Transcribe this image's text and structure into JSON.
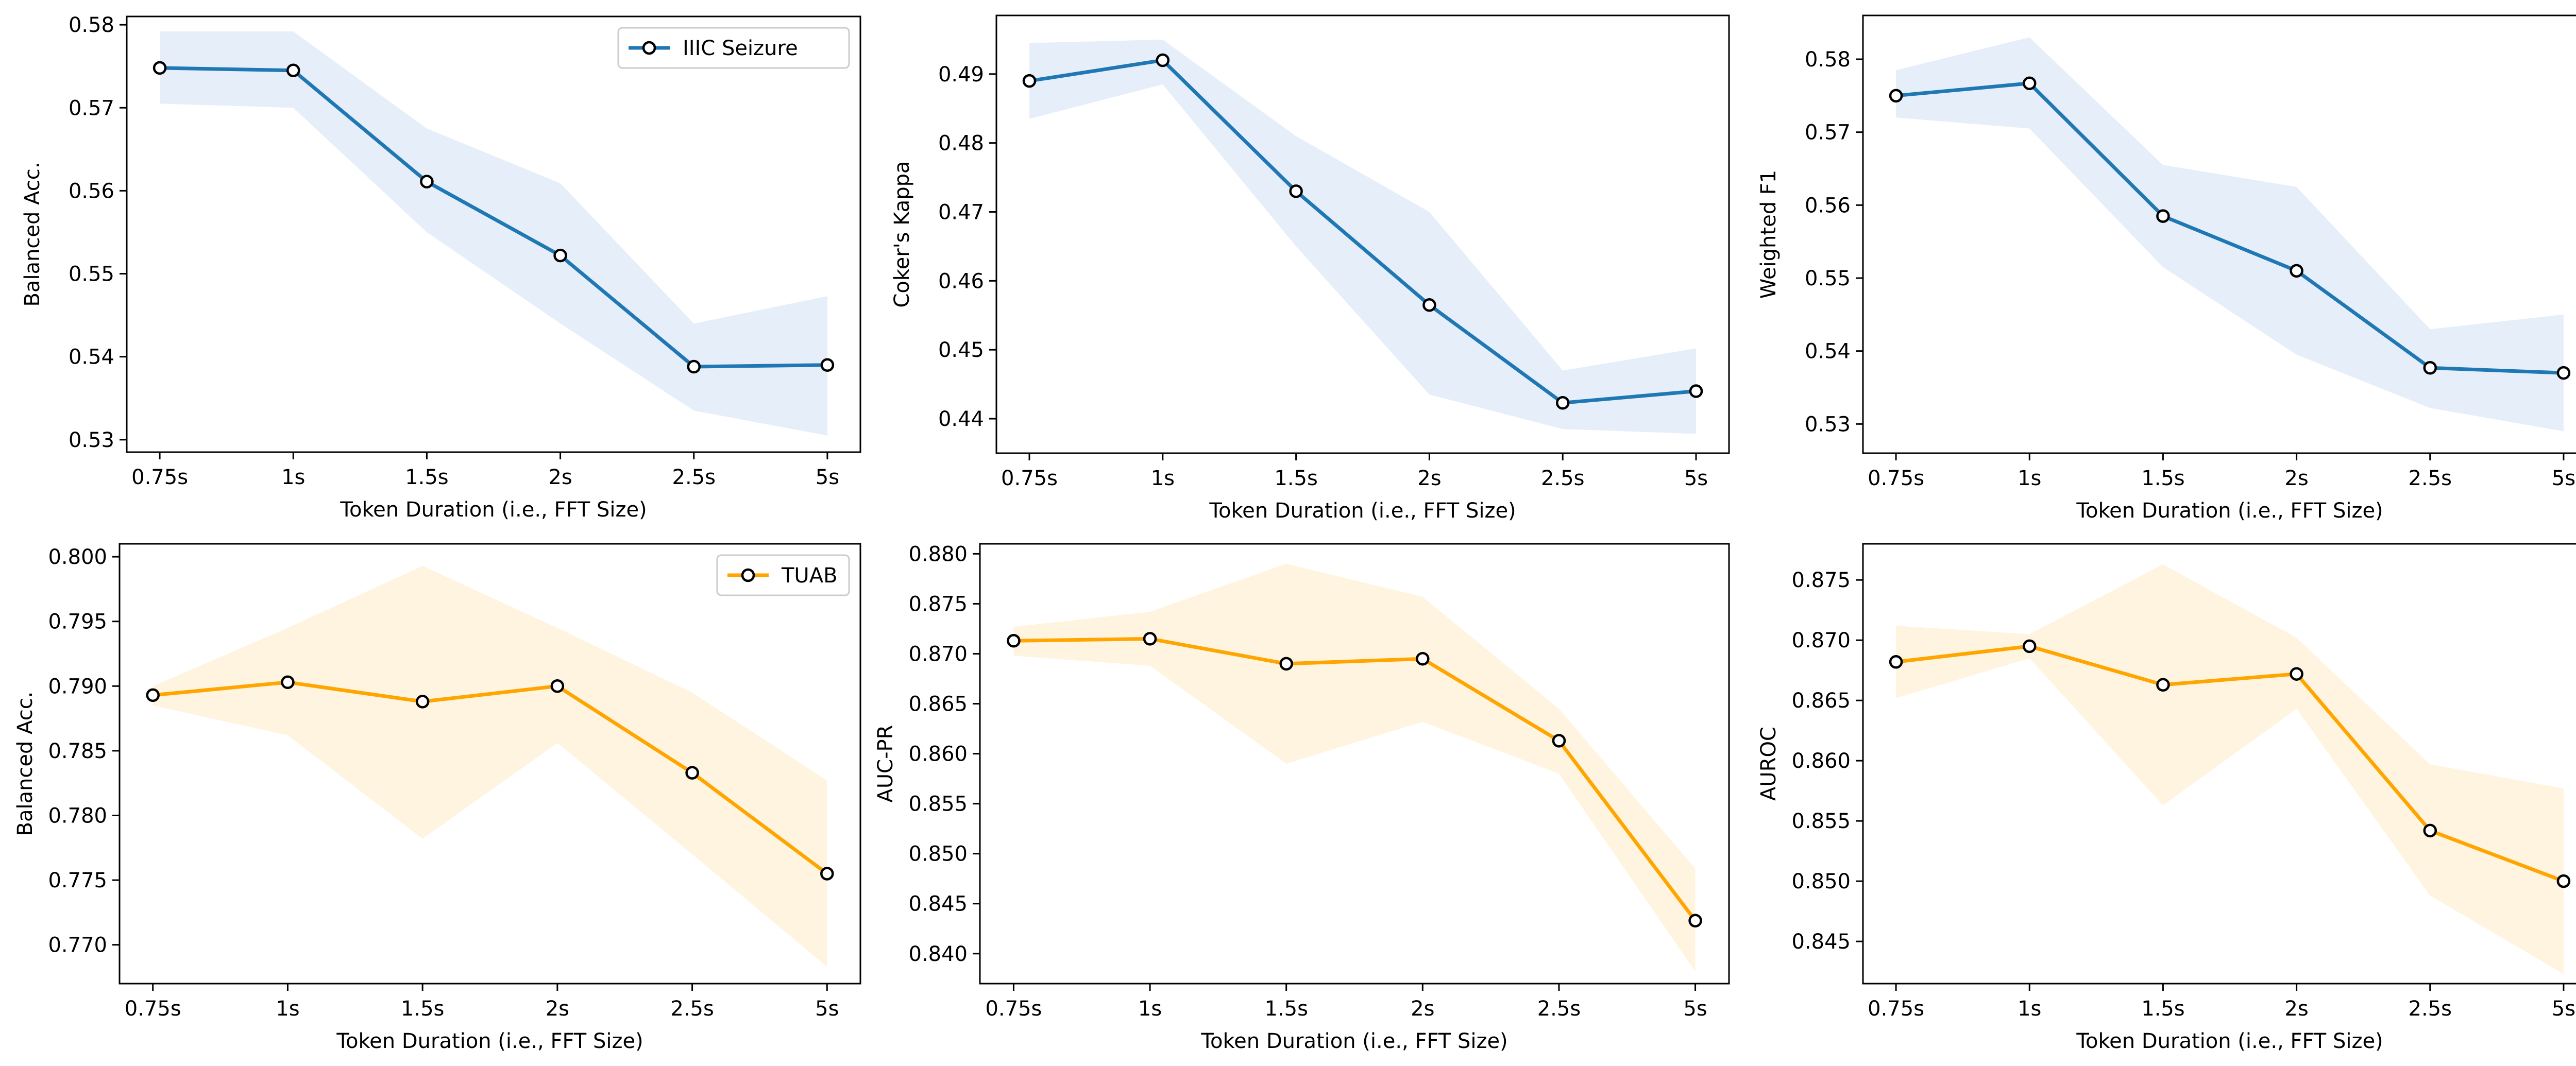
{
  "chart_data": [
    {
      "type": "line",
      "id": "iiic-bacc",
      "categories": [
        "0.75s",
        "1s",
        "1.5s",
        "2s",
        "2.5s",
        "5s"
      ],
      "xlabel": "Token Duration (i.e., FFT Size)",
      "ylabel": "Balanced Acc.",
      "ylim": [
        0.5285,
        0.581
      ],
      "yticks": [
        0.53,
        0.54,
        0.55,
        0.56,
        0.57,
        0.58
      ],
      "ytick_labels": [
        "0.53",
        "0.54",
        "0.55",
        "0.56",
        "0.57",
        "0.58"
      ],
      "series": [
        {
          "name": "IIIC Seizure",
          "values": [
            0.5748,
            0.5745,
            0.5611,
            0.5522,
            0.5388,
            0.539
          ],
          "band_upper": [
            0.5792,
            0.5792,
            0.5675,
            0.5609,
            0.544,
            0.5473
          ],
          "band_lower": [
            0.5705,
            0.57,
            0.555,
            0.544,
            0.5335,
            0.5305
          ]
        }
      ],
      "color": "#1f77b4",
      "band_color": "#e6eff9",
      "legend": {
        "label": "IIIC Seizure",
        "loc": "upper right"
      }
    },
    {
      "type": "line",
      "id": "iiic-kappa",
      "categories": [
        "0.75s",
        "1s",
        "1.5s",
        "2s",
        "2.5s",
        "5s"
      ],
      "xlabel": "Token Duration (i.e., FFT Size)",
      "ylabel": "Coker's Kappa",
      "ylim": [
        0.435,
        0.4985
      ],
      "yticks": [
        0.44,
        0.45,
        0.46,
        0.47,
        0.48,
        0.49
      ],
      "ytick_labels": [
        "0.44",
        "0.45",
        "0.46",
        "0.47",
        "0.48",
        "0.49"
      ],
      "series": [
        {
          "name": "IIIC Seizure",
          "values": [
            0.489,
            0.492,
            0.473,
            0.4565,
            0.4423,
            0.444
          ],
          "band_upper": [
            0.4945,
            0.495,
            0.481,
            0.47,
            0.447,
            0.4502
          ],
          "band_lower": [
            0.4835,
            0.4885,
            0.465,
            0.4435,
            0.4385,
            0.4378
          ]
        }
      ],
      "color": "#1f77b4",
      "band_color": "#e6eff9"
    },
    {
      "type": "line",
      "id": "iiic-f1",
      "categories": [
        "0.75s",
        "1s",
        "1.5s",
        "2s",
        "2.5s",
        "5s"
      ],
      "xlabel": "Token Duration (i.e., FFT Size)",
      "ylabel": "Weighted F1",
      "ylim": [
        0.526,
        0.586
      ],
      "yticks": [
        0.53,
        0.54,
        0.55,
        0.56,
        0.57,
        0.58
      ],
      "ytick_labels": [
        "0.53",
        "0.54",
        "0.55",
        "0.56",
        "0.57",
        "0.58"
      ],
      "series": [
        {
          "name": "IIIC Seizure",
          "values": [
            0.575,
            0.5767,
            0.5585,
            0.551,
            0.5377,
            0.537
          ],
          "band_upper": [
            0.5785,
            0.583,
            0.5655,
            0.5625,
            0.543,
            0.545
          ],
          "band_lower": [
            0.572,
            0.5705,
            0.5515,
            0.5395,
            0.5322,
            0.529
          ]
        }
      ],
      "color": "#1f77b4",
      "band_color": "#e6eff9"
    },
    {
      "type": "line",
      "id": "tuab-bacc",
      "categories": [
        "0.75s",
        "1s",
        "1.5s",
        "2s",
        "2.5s",
        "5s"
      ],
      "xlabel": "Token Duration (i.e., FFT Size)",
      "ylabel": "Balanced Acc.",
      "ylim": [
        0.767,
        0.801
      ],
      "yticks": [
        0.77,
        0.775,
        0.78,
        0.785,
        0.79,
        0.795,
        0.8
      ],
      "ytick_labels": [
        "0.770",
        "0.775",
        "0.780",
        "0.785",
        "0.790",
        "0.795",
        "0.800"
      ],
      "series": [
        {
          "name": "TUAB",
          "values": [
            0.7893,
            0.7903,
            0.7888,
            0.79,
            0.7833,
            0.7755
          ],
          "band_upper": [
            0.79,
            0.7945,
            0.7993,
            0.7945,
            0.7895,
            0.7827
          ],
          "band_lower": [
            0.7885,
            0.7862,
            0.7782,
            0.7856,
            0.777,
            0.7683
          ]
        }
      ],
      "color": "#ffa500",
      "band_color": "#fff4e0",
      "legend": {
        "label": "TUAB",
        "loc": "upper right"
      }
    },
    {
      "type": "line",
      "id": "tuab-aucpr",
      "categories": [
        "0.75s",
        "1s",
        "1.5s",
        "2s",
        "2.5s",
        "5s"
      ],
      "xlabel": "Token Duration (i.e., FFT Size)",
      "ylabel": "AUC-PR",
      "ylim": [
        0.837,
        0.881
      ],
      "yticks": [
        0.84,
        0.845,
        0.85,
        0.855,
        0.86,
        0.865,
        0.87,
        0.875,
        0.88
      ],
      "ytick_labels": [
        "0.840",
        "0.845",
        "0.850",
        "0.855",
        "0.860",
        "0.865",
        "0.870",
        "0.875",
        "0.880"
      ],
      "series": [
        {
          "name": "TUAB",
          "values": [
            0.8713,
            0.8715,
            0.869,
            0.8695,
            0.8613,
            0.8433
          ],
          "band_upper": [
            0.8727,
            0.8742,
            0.879,
            0.8757,
            0.8645,
            0.8485
          ],
          "band_lower": [
            0.8698,
            0.8688,
            0.859,
            0.8632,
            0.858,
            0.8382
          ]
        }
      ],
      "color": "#ffa500",
      "band_color": "#fff4e0"
    },
    {
      "type": "line",
      "id": "tuab-auroc",
      "categories": [
        "0.75s",
        "1s",
        "1.5s",
        "2s",
        "2.5s",
        "5s"
      ],
      "xlabel": "Token Duration (i.e., FFT Size)",
      "ylabel": "AUROC",
      "ylim": [
        0.8415,
        0.878
      ],
      "yticks": [
        0.845,
        0.85,
        0.855,
        0.86,
        0.865,
        0.87,
        0.875
      ],
      "ytick_labels": [
        "0.845",
        "0.850",
        "0.855",
        "0.860",
        "0.865",
        "0.870",
        "0.875"
      ],
      "series": [
        {
          "name": "TUAB",
          "values": [
            0.8682,
            0.8695,
            0.8663,
            0.8672,
            0.8542,
            0.85
          ],
          "band_upper": [
            0.8712,
            0.8705,
            0.8763,
            0.8702,
            0.8597,
            0.8577
          ],
          "band_lower": [
            0.8652,
            0.8685,
            0.8563,
            0.8643,
            0.8488,
            0.8423
          ]
        }
      ],
      "color": "#ffa500",
      "band_color": "#fff4e0"
    }
  ]
}
